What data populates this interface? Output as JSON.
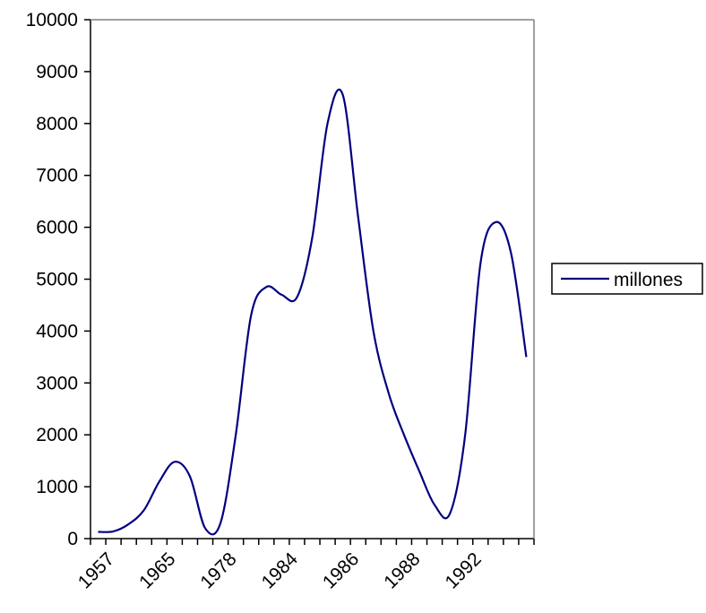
{
  "chart_data": {
    "type": "line",
    "title": "",
    "xlabel": "",
    "ylabel": "",
    "ylim": [
      0,
      10000
    ],
    "yticks": [
      0,
      1000,
      2000,
      3000,
      4000,
      5000,
      6000,
      7000,
      8000,
      9000,
      10000
    ],
    "x_tick_labels": [
      "1957",
      "1965",
      "1978",
      "1984",
      "1986",
      "1988",
      "1992"
    ],
    "legend_position": "right",
    "grid": false,
    "line_color": "#000080",
    "series": [
      {
        "name": "millones",
        "values": [
          130,
          140,
          280,
          550,
          1100,
          1480,
          1200,
          200,
          300,
          2000,
          4300,
          4850,
          4700,
          4650,
          5800,
          8000,
          8550,
          6200,
          4000,
          2800,
          2000,
          1300,
          650,
          480,
          2000,
          5300,
          6100,
          5500,
          3500
        ]
      }
    ]
  }
}
